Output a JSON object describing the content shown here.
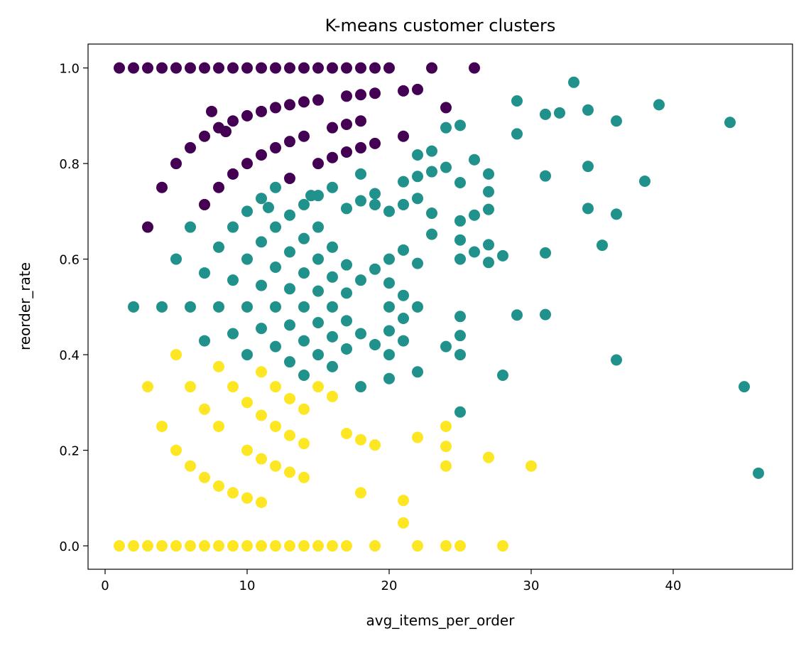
{
  "chart_data": {
    "type": "scatter",
    "title": "K-means customer clusters",
    "xlabel": "avg_items_per_order",
    "ylabel": "reorder_rate",
    "xlim": [
      -1.2,
      48.4
    ],
    "ylim": [
      -0.049,
      1.05
    ],
    "xticks": [
      0,
      10,
      20,
      30,
      40
    ],
    "yticks": [
      0.0,
      0.2,
      0.4,
      0.6,
      0.8,
      1.0
    ],
    "ytick_labels": [
      "0.0",
      "0.2",
      "0.4",
      "0.6",
      "0.8",
      "1.0"
    ],
    "xtick_labels": [
      "0",
      "10",
      "20",
      "30",
      "40"
    ],
    "grid": false,
    "legend": "none",
    "series": [
      {
        "color": "#440154",
        "points": [
          [
            1,
            1
          ],
          [
            2,
            1
          ],
          [
            3,
            1
          ],
          [
            4,
            1
          ],
          [
            5,
            1
          ],
          [
            6,
            1
          ],
          [
            7,
            1
          ],
          [
            8,
            1
          ],
          [
            9,
            1
          ],
          [
            10,
            1
          ],
          [
            11,
            1
          ],
          [
            12,
            1
          ],
          [
            13,
            1
          ],
          [
            14,
            1
          ],
          [
            15,
            1
          ],
          [
            16,
            1
          ],
          [
            17,
            1
          ],
          [
            18,
            1
          ],
          [
            19,
            1
          ],
          [
            20,
            1
          ],
          [
            23,
            1
          ],
          [
            26,
            1
          ],
          [
            7.5,
            0.909
          ],
          [
            9,
            0.889
          ],
          [
            8,
            0.875
          ],
          [
            8.5,
            0.867
          ],
          [
            10,
            0.9
          ],
          [
            11,
            0.909
          ],
          [
            12,
            0.917
          ],
          [
            13,
            0.923
          ],
          [
            14,
            0.929
          ],
          [
            15,
            0.933
          ],
          [
            17,
            0.941
          ],
          [
            18,
            0.944
          ],
          [
            19,
            0.947
          ],
          [
            21,
            0.952
          ],
          [
            22,
            0.955
          ],
          [
            24,
            0.917
          ],
          [
            16,
            0.875
          ],
          [
            17,
            0.882
          ],
          [
            18,
            0.889
          ],
          [
            21,
            0.857
          ],
          [
            6,
            0.833
          ],
          [
            7,
            0.857
          ],
          [
            5,
            0.8
          ],
          [
            4,
            0.75
          ],
          [
            3,
            0.667
          ],
          [
            7,
            0.714
          ],
          [
            8,
            0.75
          ],
          [
            9,
            0.778
          ],
          [
            10,
            0.8
          ],
          [
            11,
            0.818
          ],
          [
            12,
            0.833
          ],
          [
            13,
            0.846
          ],
          [
            14,
            0.857
          ],
          [
            13,
            0.769
          ],
          [
            15,
            0.8
          ],
          [
            16,
            0.8125
          ],
          [
            17,
            0.824
          ],
          [
            18,
            0.833
          ],
          [
            19,
            0.842
          ]
        ]
      },
      {
        "color": "#21918c",
        "points": [
          [
            2,
            0.5
          ],
          [
            4,
            0.5
          ],
          [
            5,
            0.6
          ],
          [
            6,
            0.667
          ],
          [
            6,
            0.5
          ],
          [
            7,
            0.571
          ],
          [
            7,
            0.429
          ],
          [
            8,
            0.625
          ],
          [
            8,
            0.5
          ],
          [
            9,
            0.667
          ],
          [
            9,
            0.556
          ],
          [
            9,
            0.444
          ],
          [
            10,
            0.7
          ],
          [
            10,
            0.6
          ],
          [
            10,
            0.5
          ],
          [
            10,
            0.4
          ],
          [
            11,
            0.727
          ],
          [
            11,
            0.636
          ],
          [
            11,
            0.545
          ],
          [
            11,
            0.455
          ],
          [
            11.5,
            0.708
          ],
          [
            12,
            0.75
          ],
          [
            12,
            0.667
          ],
          [
            12,
            0.583
          ],
          [
            12,
            0.5
          ],
          [
            12,
            0.417
          ],
          [
            13,
            0.692
          ],
          [
            13,
            0.615
          ],
          [
            13,
            0.538
          ],
          [
            13,
            0.462
          ],
          [
            13,
            0.385
          ],
          [
            14,
            0.714
          ],
          [
            14,
            0.643
          ],
          [
            14,
            0.571
          ],
          [
            14,
            0.5
          ],
          [
            14,
            0.429
          ],
          [
            14,
            0.357
          ],
          [
            14.5,
            0.733
          ],
          [
            15,
            0.733
          ],
          [
            15,
            0.667
          ],
          [
            15,
            0.6
          ],
          [
            15,
            0.533
          ],
          [
            15,
            0.467
          ],
          [
            15,
            0.4
          ],
          [
            16,
            0.75
          ],
          [
            16,
            0.625
          ],
          [
            16,
            0.5625
          ],
          [
            16,
            0.5
          ],
          [
            16,
            0.4375
          ],
          [
            16,
            0.375
          ],
          [
            17,
            0.706
          ],
          [
            17,
            0.588
          ],
          [
            17,
            0.529
          ],
          [
            17,
            0.471
          ],
          [
            17,
            0.412
          ],
          [
            18,
            0.778
          ],
          [
            18,
            0.722
          ],
          [
            18,
            0.556
          ],
          [
            18,
            0.444
          ],
          [
            18,
            0.333
          ],
          [
            19,
            0.737
          ],
          [
            19,
            0.714
          ],
          [
            19,
            0.579
          ],
          [
            19,
            0.421
          ],
          [
            20,
            0.7
          ],
          [
            20,
            0.6
          ],
          [
            20,
            0.55
          ],
          [
            20,
            0.5
          ],
          [
            20,
            0.45
          ],
          [
            20,
            0.4
          ],
          [
            20,
            0.35
          ],
          [
            21,
            0.762
          ],
          [
            21,
            0.714
          ],
          [
            21,
            0.619
          ],
          [
            21,
            0.524
          ],
          [
            21,
            0.476
          ],
          [
            21,
            0.429
          ],
          [
            22,
            0.818
          ],
          [
            22,
            0.773
          ],
          [
            22,
            0.727
          ],
          [
            22,
            0.591
          ],
          [
            22,
            0.5
          ],
          [
            22,
            0.364
          ],
          [
            23,
            0.826
          ],
          [
            23,
            0.783
          ],
          [
            23,
            0.696
          ],
          [
            23,
            0.652
          ],
          [
            24,
            0.875
          ],
          [
            24,
            0.792
          ],
          [
            24,
            0.417
          ],
          [
            25,
            0.88
          ],
          [
            25,
            0.76
          ],
          [
            25,
            0.68
          ],
          [
            25,
            0.64
          ],
          [
            25,
            0.6
          ],
          [
            25,
            0.48
          ],
          [
            25,
            0.44
          ],
          [
            25,
            0.4
          ],
          [
            25,
            0.28
          ],
          [
            26,
            0.808
          ],
          [
            26,
            0.692
          ],
          [
            26,
            0.615
          ],
          [
            27,
            0.778
          ],
          [
            27,
            0.741
          ],
          [
            27,
            0.704
          ],
          [
            27,
            0.63
          ],
          [
            27,
            0.593
          ],
          [
            28,
            0.607
          ],
          [
            28,
            0.357
          ],
          [
            29,
            0.931
          ],
          [
            29,
            0.862
          ],
          [
            29,
            0.483
          ],
          [
            31,
            0.903
          ],
          [
            31,
            0.774
          ],
          [
            31,
            0.613
          ],
          [
            31,
            0.484
          ],
          [
            32,
            0.906
          ],
          [
            33,
            0.97
          ],
          [
            34,
            0.912
          ],
          [
            34,
            0.794
          ],
          [
            34,
            0.706
          ],
          [
            35,
            0.629
          ],
          [
            36,
            0.889
          ],
          [
            36,
            0.694
          ],
          [
            36,
            0.389
          ],
          [
            38,
            0.763
          ],
          [
            39,
            0.923
          ],
          [
            44,
            0.886
          ],
          [
            45,
            0.333
          ],
          [
            46,
            0.152
          ]
        ]
      },
      {
        "color": "#fde725",
        "points": [
          [
            1,
            0
          ],
          [
            2,
            0
          ],
          [
            3,
            0
          ],
          [
            4,
            0
          ],
          [
            5,
            0
          ],
          [
            6,
            0
          ],
          [
            7,
            0
          ],
          [
            8,
            0
          ],
          [
            9,
            0
          ],
          [
            10,
            0
          ],
          [
            11,
            0
          ],
          [
            12,
            0
          ],
          [
            13,
            0
          ],
          [
            14,
            0
          ],
          [
            15,
            0
          ],
          [
            16,
            0
          ],
          [
            17,
            0
          ],
          [
            19,
            0
          ],
          [
            22,
            0
          ],
          [
            24,
            0
          ],
          [
            25,
            0
          ],
          [
            28,
            0
          ],
          [
            3,
            0.333
          ],
          [
            4,
            0.25
          ],
          [
            5,
            0.4
          ],
          [
            5,
            0.2
          ],
          [
            6,
            0.333
          ],
          [
            6,
            0.167
          ],
          [
            7,
            0.286
          ],
          [
            7,
            0.143
          ],
          [
            8,
            0.375
          ],
          [
            8,
            0.25
          ],
          [
            8,
            0.125
          ],
          [
            9,
            0.333
          ],
          [
            9,
            0.111
          ],
          [
            10,
            0.3
          ],
          [
            10,
            0.2
          ],
          [
            10,
            0.1
          ],
          [
            11,
            0.364
          ],
          [
            11,
            0.273
          ],
          [
            11,
            0.182
          ],
          [
            11,
            0.091
          ],
          [
            12,
            0.333
          ],
          [
            12,
            0.25
          ],
          [
            12,
            0.167
          ],
          [
            13,
            0.308
          ],
          [
            13,
            0.231
          ],
          [
            13,
            0.154
          ],
          [
            14,
            0.286
          ],
          [
            14,
            0.214
          ],
          [
            14,
            0.143
          ],
          [
            15,
            0.333
          ],
          [
            16,
            0.3125
          ],
          [
            17,
            0.235
          ],
          [
            18,
            0.222
          ],
          [
            18,
            0.111
          ],
          [
            19,
            0.211
          ],
          [
            21,
            0.095
          ],
          [
            21,
            0.048
          ],
          [
            22,
            0.227
          ],
          [
            24,
            0.25
          ],
          [
            24,
            0.208
          ],
          [
            24,
            0.167
          ],
          [
            27,
            0.185
          ],
          [
            30,
            0.167
          ]
        ]
      }
    ]
  }
}
